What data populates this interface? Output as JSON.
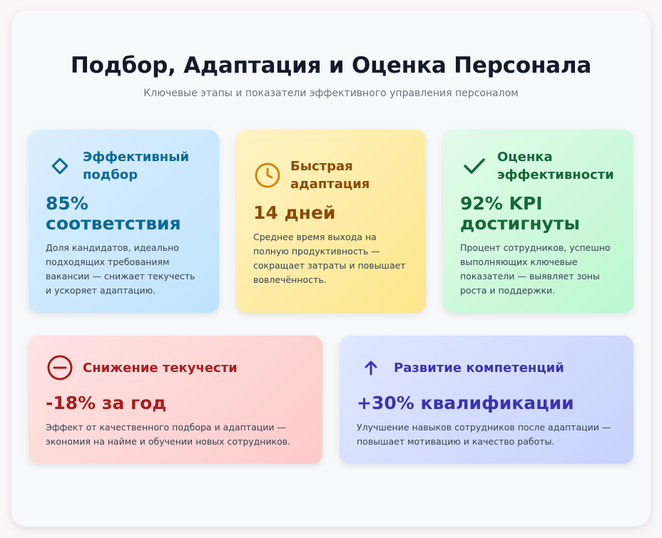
{
  "header": {
    "title": "Подбор, Адаптация и Оценка Персонала",
    "subtitle": "Ключевые этапы и показатели эффективного управления персоналом"
  },
  "cards": [
    {
      "icon": "diamond-icon",
      "color": "#0b6a94",
      "title_line1": "Эффективный",
      "title_line2": "подбор",
      "value_line1": "85%",
      "value_line2": "соответствия",
      "description": "Доля кандидатов, идеально подходящих требованиям вакансии — снижает текучесть и ускоряет адаптацию."
    },
    {
      "icon": "clock-icon",
      "color": "#8b4a08",
      "title_line1": "Быстрая",
      "title_line2": "адаптация",
      "value_line1": "14 дней",
      "description": "Среднее время выхода на полную продуктивность — сокращает затраты и повышает вовлечённость."
    },
    {
      "icon": "checkmark-icon",
      "color": "#15683a",
      "title_line1": "Оценка",
      "title_line2": "эффективности",
      "value_line1": "92% KPI",
      "value_line2": "достигнуты",
      "description": "Процент сотрудников, успешно выполняющих ключевые показатели — выявляет зоны роста и поддержки."
    },
    {
      "icon": "minus-circle-icon",
      "color": "#a61e1e",
      "title_line1": "Снижение текучести",
      "value_line1": "-18% за год",
      "description": "Эффект от качественного подбора и адаптации — экономия на найме и обучении новых сотрудников."
    },
    {
      "icon": "arrow-up-icon",
      "color": "#3a34b0",
      "title_line1": "Развитие компетенций",
      "value_line1": "+30% квалификации",
      "description": "Улучшение навыков сотрудников после адаптации — повышает мотивацию и качество работы."
    }
  ]
}
